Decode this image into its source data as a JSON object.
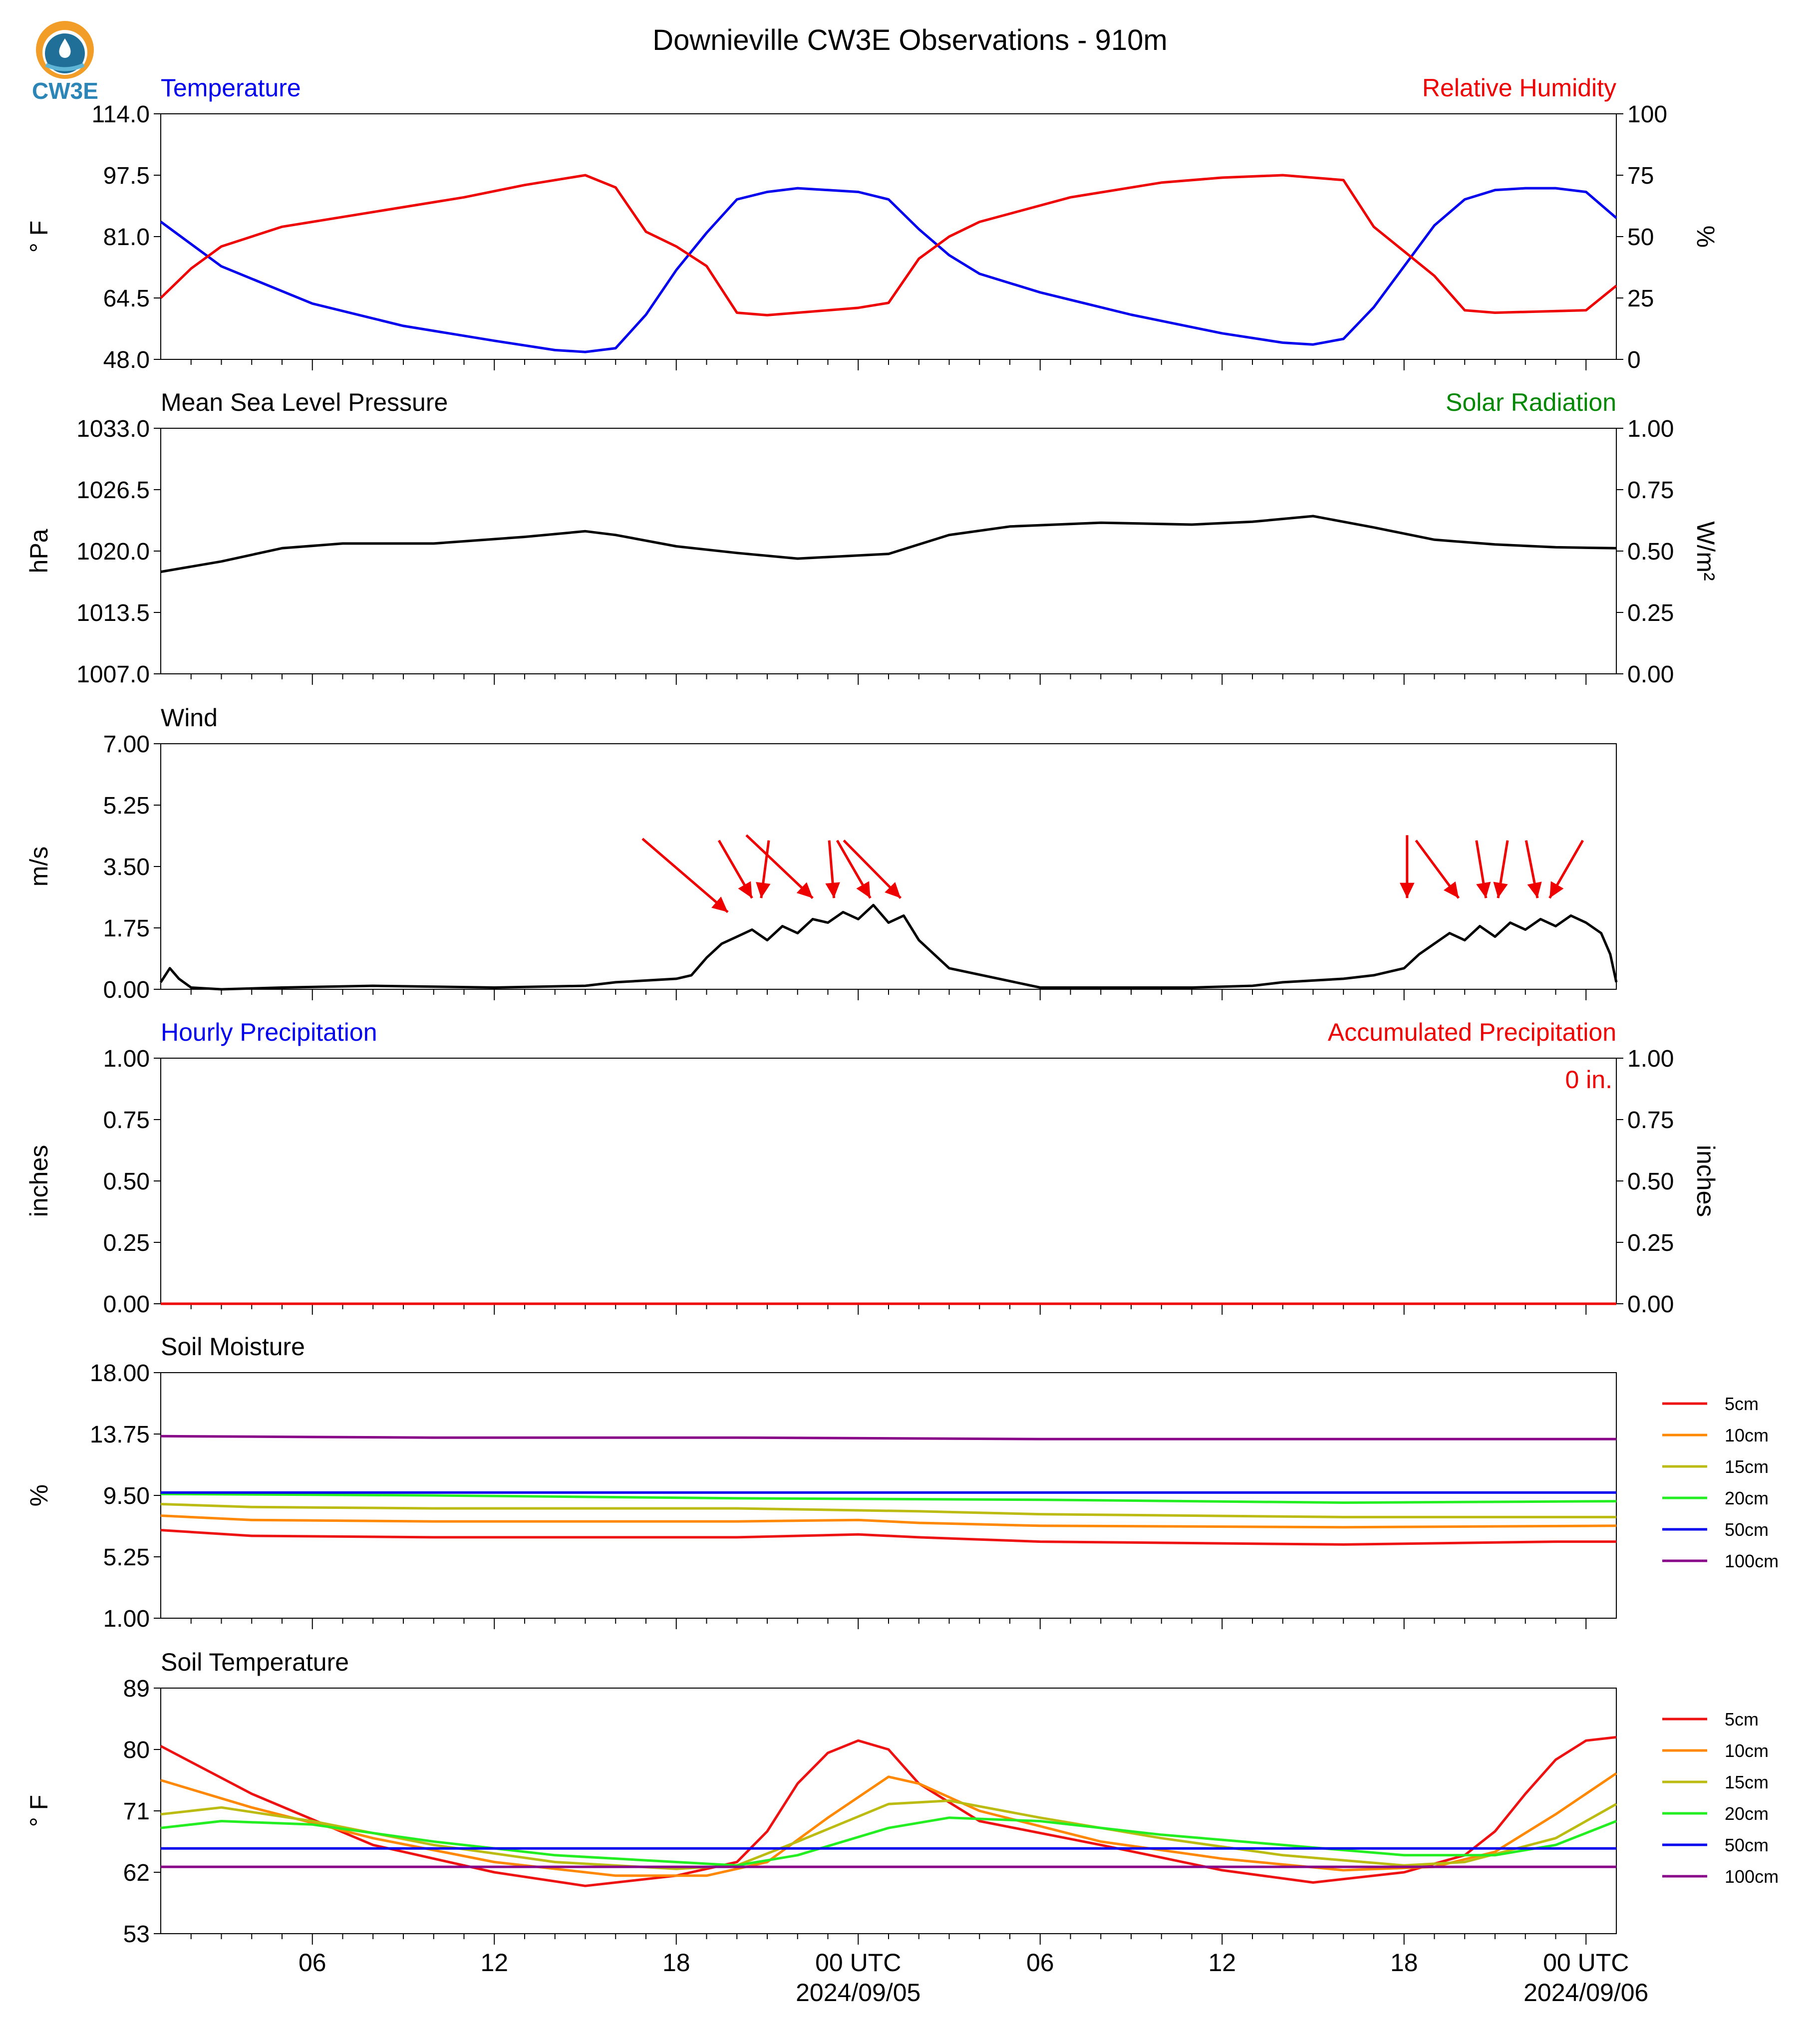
{
  "title": "Downieville CW3E Observations - 910m",
  "logo_text": "CW3E",
  "colors": {
    "blue": "#0000ee",
    "red": "#ee0000",
    "green": "#008800",
    "black": "#000000"
  },
  "x_axis": {
    "tick_labels": [
      "06",
      "12",
      "18",
      "00 UTC",
      "06",
      "12",
      "18",
      "00 UTC"
    ],
    "tick_hours": [
      6,
      12,
      18,
      24,
      30,
      36,
      42,
      48
    ],
    "date_labels": [
      {
        "hour": 24,
        "text": "2024/09/05"
      },
      {
        "hour": 48,
        "text": "2024/09/06"
      }
    ],
    "range_hours": [
      1,
      49
    ]
  },
  "chart_data": [
    {
      "id": "temperature-rh",
      "type": "line",
      "title_left": "Temperature",
      "title_right": "Relative Humidity",
      "ylabel": "° F",
      "ylabel_right": "%",
      "ylim": [
        48.0,
        114.0
      ],
      "yticks": [
        "48.0",
        "64.5",
        "81.0",
        "97.5",
        "114.0"
      ],
      "ylim_right": [
        0,
        100
      ],
      "yticks_right": [
        "0",
        "25",
        "50",
        "75",
        "100"
      ],
      "series": [
        {
          "axis": "left",
          "color": "#0000ee",
          "x": [
            1,
            3,
            6,
            9,
            12,
            14,
            15,
            16,
            17,
            18,
            19,
            20,
            21,
            22,
            23,
            24,
            25,
            26,
            27,
            28,
            30,
            33,
            36,
            38,
            39,
            40,
            41,
            42,
            43,
            44,
            45,
            46,
            47,
            48,
            49
          ],
          "y": [
            85,
            73,
            63,
            57,
            53,
            50.5,
            50,
            51,
            60,
            72,
            82,
            91,
            93,
            94,
            93.5,
            93,
            91,
            83,
            76,
            71,
            66,
            60,
            55,
            52.5,
            52,
            53.5,
            62,
            73,
            84,
            91,
            93.5,
            94,
            94,
            93,
            86
          ]
        },
        {
          "axis": "right",
          "color": "#ee0000",
          "x": [
            1,
            2,
            3,
            5,
            8,
            11,
            13,
            15,
            16,
            17,
            18,
            19,
            20,
            21,
            24,
            25,
            26,
            27,
            28,
            31,
            34,
            36,
            38,
            40,
            41,
            42,
            43,
            44,
            45,
            48,
            49
          ],
          "y": [
            25,
            37,
            46,
            54,
            60,
            66,
            71,
            75,
            70,
            52,
            46,
            38,
            19,
            18,
            21,
            23,
            41,
            50,
            56,
            66,
            72,
            74,
            75,
            73,
            54,
            44,
            34,
            20,
            19,
            20,
            30
          ]
        }
      ]
    },
    {
      "id": "pressure-solar",
      "type": "line",
      "title_left": "Mean Sea Level Pressure",
      "title_right": "Solar Radiation",
      "ylabel": "hPa",
      "ylabel_right": "W/m²",
      "ylim": [
        1007.0,
        1033.0
      ],
      "yticks": [
        "1007.0",
        "1013.5",
        "1020.0",
        "1026.5",
        "1033.0"
      ],
      "ylim_right": [
        0,
        1
      ],
      "yticks_right": [
        "0.00",
        "0.25",
        "0.50",
        "0.75",
        "1.00"
      ],
      "series": [
        {
          "axis": "left",
          "color": "#000000",
          "x": [
            1,
            3,
            5,
            7,
            10,
            13,
            15,
            16,
            18,
            20,
            22,
            25,
            27,
            29,
            32,
            35,
            37,
            39,
            41,
            43,
            45,
            47,
            49
          ],
          "y": [
            1017.8,
            1018.9,
            1020.3,
            1020.8,
            1020.8,
            1021.5,
            1022.1,
            1021.7,
            1020.5,
            1019.8,
            1019.2,
            1019.7,
            1021.7,
            1022.6,
            1023.0,
            1022.8,
            1023.1,
            1023.7,
            1022.5,
            1021.2,
            1020.7,
            1020.4,
            1020.3
          ]
        }
      ]
    },
    {
      "id": "wind",
      "type": "line",
      "title_left": "Wind",
      "title_right": "",
      "ylabel": "m/s",
      "ylim": [
        0,
        7
      ],
      "yticks": [
        "0.00",
        "1.75",
        "3.50",
        "5.25",
        "7.00"
      ],
      "series": [
        {
          "axis": "left",
          "color": "#000000",
          "x": [
            1,
            1.3,
            1.6,
            2,
            3,
            5,
            8,
            12,
            15,
            16,
            17,
            18,
            18.5,
            19,
            19.5,
            20,
            20.5,
            21,
            21.5,
            22,
            22.5,
            23,
            23.5,
            24,
            24.5,
            25,
            25.5,
            26,
            27,
            30,
            35,
            37,
            38,
            40,
            41,
            42,
            42.5,
            43,
            43.5,
            44,
            44.5,
            45,
            45.5,
            46,
            46.5,
            47,
            47.5,
            48,
            48.5,
            48.8,
            49
          ],
          "y": [
            0.2,
            0.6,
            0.3,
            0.05,
            0,
            0.05,
            0.1,
            0.05,
            0.1,
            0.2,
            0.25,
            0.3,
            0.4,
            0.9,
            1.3,
            1.5,
            1.7,
            1.4,
            1.8,
            1.6,
            2.0,
            1.9,
            2.2,
            2.0,
            2.4,
            1.9,
            2.1,
            1.4,
            0.6,
            0.05,
            0.05,
            0.1,
            0.2,
            0.3,
            0.4,
            0.6,
            1.0,
            1.3,
            1.6,
            1.4,
            1.8,
            1.5,
            1.9,
            1.7,
            2.0,
            1.8,
            2.1,
            1.9,
            1.6,
            1.0,
            0.2
          ]
        }
      ],
      "arrows": [
        {
          "x": 19.7,
          "speed": 2.2,
          "dx": 0.0,
          "dy": 0.0
        },
        {
          "x": 20.5,
          "speed": 2.6
        },
        {
          "x": 20.8,
          "speed": 2.6
        },
        {
          "x": 22.5,
          "speed": 2.6
        },
        {
          "x": 23.2,
          "speed": 2.6
        },
        {
          "x": 24.4,
          "speed": 2.6
        },
        {
          "x": 25.4,
          "speed": 2.6
        },
        {
          "x": 42.1,
          "speed": 2.6
        },
        {
          "x": 43.8,
          "speed": 2.6
        },
        {
          "x": 44.7,
          "speed": 2.6
        },
        {
          "x": 45.1,
          "speed": 2.6
        },
        {
          "x": 46.4,
          "speed": 2.6
        },
        {
          "x": 46.8,
          "speed": 2.6
        }
      ]
    },
    {
      "id": "precipitation",
      "type": "line",
      "title_left": "Hourly Precipitation",
      "title_right": "Accumulated Precipitation",
      "annotation": "0 in.",
      "ylabel": "inches",
      "ylabel_right": "inches",
      "ylim": [
        0,
        1
      ],
      "yticks": [
        "0.00",
        "0.25",
        "0.50",
        "0.75",
        "1.00"
      ],
      "ylim_right": [
        0,
        1
      ],
      "yticks_right": [
        "0.00",
        "0.25",
        "0.50",
        "0.75",
        "1.00"
      ],
      "series": [
        {
          "axis": "left",
          "color": "#ee0000",
          "x": [
            1,
            49
          ],
          "y": [
            0,
            0
          ]
        }
      ]
    },
    {
      "id": "soil-moisture",
      "type": "line",
      "title_left": "Soil Moisture",
      "title_right": "",
      "ylabel": "%",
      "ylim": [
        1.0,
        18.0
      ],
      "yticks": [
        "1.00",
        "5.25",
        "9.50",
        "13.75",
        "18.00"
      ],
      "series": [
        {
          "name": "5cm",
          "color": "#ee1111",
          "x": [
            1,
            4,
            10,
            20,
            24,
            26,
            30,
            40,
            47,
            49
          ],
          "y": [
            7.1,
            6.7,
            6.6,
            6.6,
            6.8,
            6.6,
            6.3,
            6.1,
            6.3,
            6.3
          ]
        },
        {
          "name": "10cm",
          "color": "#ff8800",
          "x": [
            1,
            4,
            10,
            20,
            24,
            26,
            30,
            40,
            49
          ],
          "y": [
            8.1,
            7.8,
            7.7,
            7.7,
            7.8,
            7.6,
            7.4,
            7.3,
            7.4
          ]
        },
        {
          "name": "15cm",
          "color": "#bbbb11",
          "x": [
            1,
            4,
            10,
            20,
            26,
            30,
            40,
            49
          ],
          "y": [
            8.9,
            8.7,
            8.6,
            8.6,
            8.4,
            8.2,
            8.0,
            8.0
          ]
        },
        {
          "name": "20cm",
          "color": "#22ee22",
          "x": [
            1,
            10,
            20,
            30,
            40,
            49
          ],
          "y": [
            9.6,
            9.5,
            9.3,
            9.2,
            9.0,
            9.1
          ]
        },
        {
          "name": "50cm",
          "color": "#0000ee",
          "x": [
            1,
            49
          ],
          "y": [
            9.7,
            9.7
          ]
        },
        {
          "name": "100cm",
          "color": "#880088",
          "x": [
            1,
            10,
            20,
            30,
            49
          ],
          "y": [
            13.6,
            13.5,
            13.5,
            13.4,
            13.4
          ]
        }
      ]
    },
    {
      "id": "soil-temperature",
      "type": "line",
      "title_left": "Soil Temperature",
      "title_right": "",
      "ylabel": "° F",
      "ylim": [
        53,
        89
      ],
      "yticks": [
        "53",
        "62",
        "71",
        "80",
        "89"
      ],
      "series": [
        {
          "name": "5cm",
          "color": "#ee1111",
          "x": [
            1,
            4,
            8,
            12,
            15,
            18,
            20,
            21,
            22,
            23,
            24,
            25,
            26,
            28,
            32,
            36,
            39,
            42,
            44,
            45,
            46,
            47,
            48,
            49
          ],
          "y": [
            80.5,
            73.5,
            66,
            62,
            60,
            61.5,
            63.5,
            68,
            75,
            79.5,
            81.3,
            80,
            75,
            69.5,
            66,
            62.3,
            60.5,
            62,
            64.5,
            68,
            73.5,
            78.5,
            81.3,
            81.8
          ]
        },
        {
          "name": "10cm",
          "color": "#ff8800",
          "x": [
            1,
            4,
            8,
            12,
            16,
            19,
            21,
            23,
            25,
            26,
            28,
            32,
            36,
            40,
            43,
            45,
            47,
            49
          ],
          "y": [
            75.5,
            71.5,
            67,
            63.5,
            61.5,
            61.5,
            63.5,
            70,
            76,
            75,
            71,
            66.5,
            64,
            62.3,
            62.8,
            65,
            70.5,
            76.5
          ]
        },
        {
          "name": "15cm",
          "color": "#bbbb11",
          "x": [
            1,
            3,
            6,
            10,
            14,
            18,
            20,
            22,
            25,
            27,
            30,
            34,
            38,
            42,
            44,
            47,
            49
          ],
          "y": [
            70.5,
            71.5,
            69.5,
            66,
            63.5,
            62.5,
            63,
            66.5,
            72,
            72.5,
            70,
            67,
            64.5,
            63,
            63.5,
            67,
            72
          ]
        },
        {
          "name": "20cm",
          "color": "#22ee22",
          "x": [
            1,
            3,
            6,
            10,
            14,
            18,
            20,
            22,
            25,
            27,
            30,
            34,
            38,
            42,
            45,
            47,
            49
          ],
          "y": [
            68.5,
            69.5,
            69,
            66.5,
            64.5,
            63.5,
            63,
            64.5,
            68.5,
            70,
            69.5,
            67.5,
            66,
            64.5,
            64.5,
            66,
            69.5
          ]
        },
        {
          "name": "50cm",
          "color": "#0000ee",
          "x": [
            1,
            49
          ],
          "y": [
            65.5,
            65.5
          ]
        },
        {
          "name": "100cm",
          "color": "#880088",
          "x": [
            1,
            49
          ],
          "y": [
            62.8,
            62.8
          ]
        }
      ],
      "legend": [
        "5cm",
        "10cm",
        "15cm",
        "20cm",
        "50cm",
        "100cm"
      ]
    }
  ]
}
